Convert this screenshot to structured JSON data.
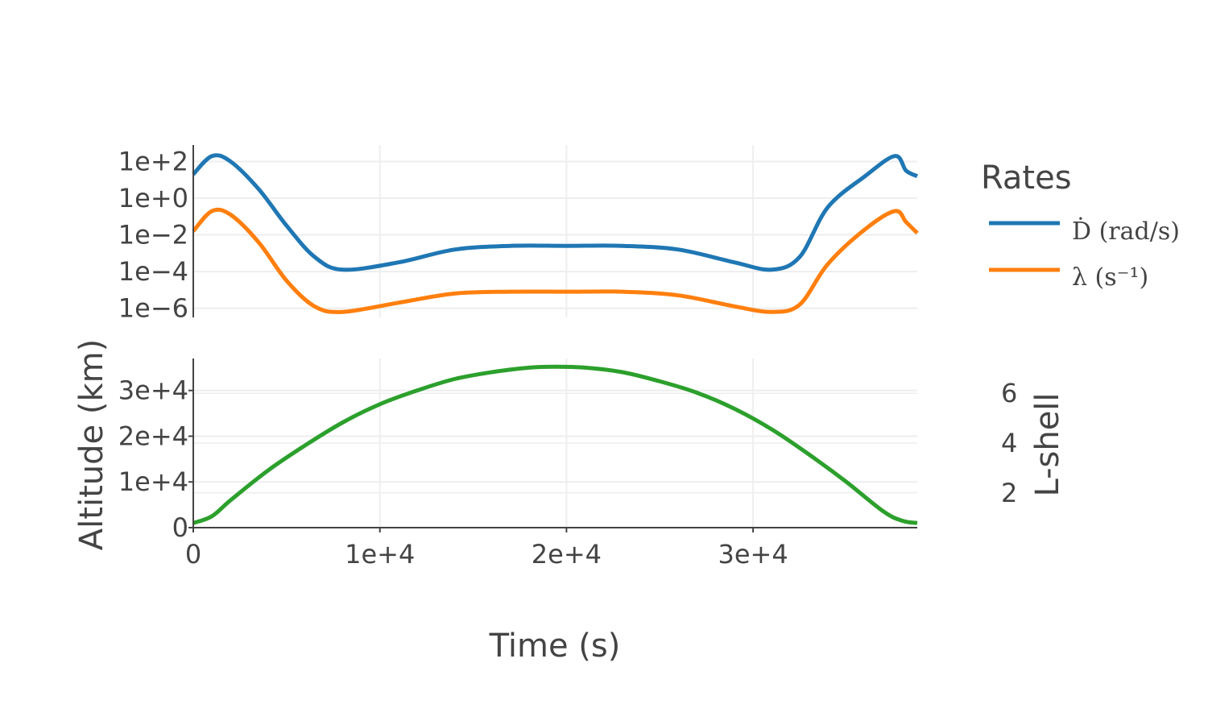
{
  "chart_data": [
    {
      "type": "line",
      "panel": "top",
      "yscale": "log",
      "ylim_log10": [
        -6.5,
        2.9
      ],
      "xlim": [
        0,
        38800
      ],
      "x_ticks": [
        0,
        10000,
        20000,
        30000
      ],
      "y_tick_labels": [
        "1e+2",
        "1e+0",
        "1e−2",
        "1e−4",
        "1e−6"
      ],
      "y_tick_values_log10": [
        2,
        0,
        -2,
        -4,
        -6
      ],
      "grid": true,
      "legend_title": "Rates",
      "legend_position": "right",
      "series": [
        {
          "name": "Ḋ (rad/s)",
          "color": "#1f77b4",
          "x": [
            0,
            1000,
            2000,
            3500,
            5000,
            6500,
            8000,
            11000,
            14000,
            17000,
            20000,
            23000,
            26000,
            29000,
            31000,
            32500,
            34000,
            36000,
            37600,
            38200,
            38800
          ],
          "log10_y": [
            1.3,
            2.3,
            2.0,
            0.5,
            -1.5,
            -3.2,
            -3.9,
            -3.5,
            -2.8,
            -2.6,
            -2.6,
            -2.6,
            -2.8,
            -3.5,
            -3.9,
            -3.2,
            -0.5,
            1.2,
            2.3,
            1.5,
            1.2
          ]
        },
        {
          "name": "λ (s⁻¹)",
          "color": "#ff7f0e",
          "x": [
            0,
            1000,
            2000,
            3500,
            5000,
            6500,
            8000,
            11000,
            14000,
            17000,
            20000,
            23000,
            26000,
            29000,
            31000,
            32500,
            34000,
            36000,
            37600,
            38200,
            38800
          ],
          "log10_y": [
            -1.8,
            -0.7,
            -0.9,
            -2.4,
            -4.5,
            -5.9,
            -6.2,
            -5.7,
            -5.2,
            -5.1,
            -5.1,
            -5.1,
            -5.3,
            -5.9,
            -6.2,
            -5.8,
            -3.6,
            -1.7,
            -0.7,
            -1.3,
            -1.9
          ]
        }
      ]
    },
    {
      "type": "line",
      "panel": "bottom",
      "xlabel": "Time (s)",
      "ylabel": "Altitude (km)",
      "y2label": "L-shell",
      "xlim": [
        0,
        38800
      ],
      "ylim": [
        0,
        37000
      ],
      "x_tick_labels": [
        "0",
        "1e+4",
        "2e+4",
        "3e+4"
      ],
      "x_tick_values": [
        0,
        10000,
        20000,
        30000
      ],
      "y_tick_labels": [
        "0",
        "1e+4",
        "2e+4",
        "3e+4"
      ],
      "y_tick_values": [
        0,
        10000,
        20000,
        30000
      ],
      "y2_tick_labels": [
        "2",
        "4",
        "6"
      ],
      "y2_tick_values": [
        2,
        4,
        6
      ],
      "y2lim": [
        0.6,
        7.4
      ],
      "grid": true,
      "series": [
        {
          "color": "#2ca02c",
          "x": [
            0,
            1000,
            2000,
            4000,
            6000,
            8000,
            10000,
            12000,
            14000,
            16000,
            18000,
            19400,
            21000,
            23000,
            25000,
            27000,
            29000,
            31000,
            33000,
            35000,
            37000,
            38000,
            38800
          ],
          "y": [
            1000,
            2500,
            6000,
            12500,
            18000,
            23000,
            27000,
            30000,
            32500,
            34000,
            35000,
            35200,
            35000,
            34000,
            32000,
            29500,
            26000,
            21500,
            16000,
            10000,
            3500,
            1500,
            1000
          ]
        }
      ]
    }
  ]
}
